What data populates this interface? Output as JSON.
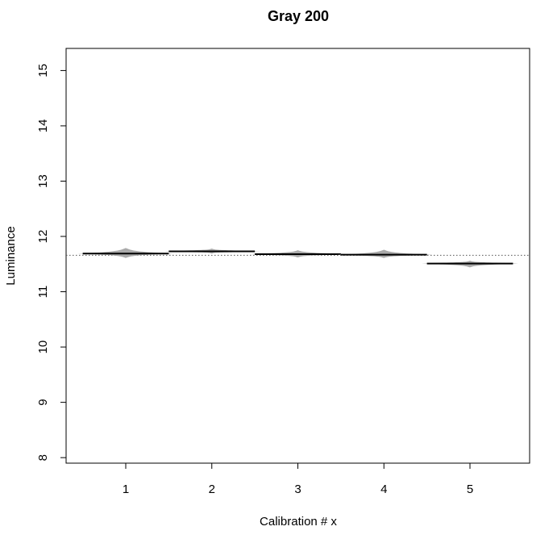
{
  "chart_data": {
    "type": "violin",
    "title": "Gray  200",
    "xlabel": "Calibration # x",
    "ylabel": "Luminance",
    "x_ticks": [
      "1",
      "2",
      "3",
      "4",
      "5"
    ],
    "y_ticks": [
      8,
      9,
      10,
      11,
      12,
      13,
      14,
      15
    ],
    "ylim": [
      7.9,
      15.4
    ],
    "reference_line": 11.66,
    "violin_color": "#aaaaaa",
    "series": [
      {
        "x": 1,
        "mean": 11.69,
        "min": 11.61,
        "max": 11.79
      },
      {
        "x": 2,
        "mean": 11.73,
        "min": 11.69,
        "max": 11.78
      },
      {
        "x": 3,
        "mean": 11.68,
        "min": 11.62,
        "max": 11.75
      },
      {
        "x": 4,
        "mean": 11.67,
        "min": 11.61,
        "max": 11.76
      },
      {
        "x": 5,
        "mean": 11.51,
        "min": 11.44,
        "max": 11.56
      }
    ]
  }
}
